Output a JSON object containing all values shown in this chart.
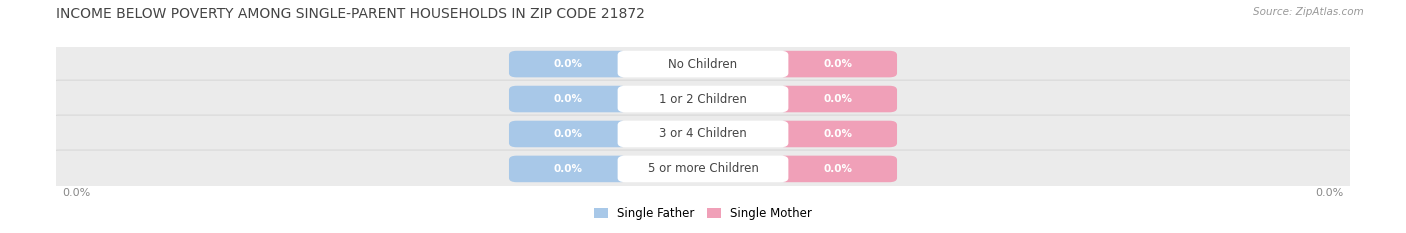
{
  "title": "INCOME BELOW POVERTY AMONG SINGLE-PARENT HOUSEHOLDS IN ZIP CODE 21872",
  "source_text": "Source: ZipAtlas.com",
  "categories": [
    "No Children",
    "1 or 2 Children",
    "3 or 4 Children",
    "5 or more Children"
  ],
  "single_father_values": [
    0.0,
    0.0,
    0.0,
    0.0
  ],
  "single_mother_values": [
    0.0,
    0.0,
    0.0,
    0.0
  ],
  "father_color": "#a8c8e8",
  "mother_color": "#f0a0b8",
  "row_bg_color": "#ebebeb",
  "row_edge_color": "#d8d8d8",
  "cat_label_bg": "#ffffff",
  "figure_bg": "#ffffff",
  "title_color": "#444444",
  "source_color": "#999999",
  "axis_val_color": "#888888",
  "value_text_color": "#ffffff",
  "cat_text_color": "#444444",
  "legend_father": "Single Father",
  "legend_mother": "Single Mother",
  "pill_value_fontsize": 7.5,
  "cat_fontsize": 8.5,
  "title_fontsize": 10,
  "source_fontsize": 7.5,
  "axis_fontsize": 8
}
